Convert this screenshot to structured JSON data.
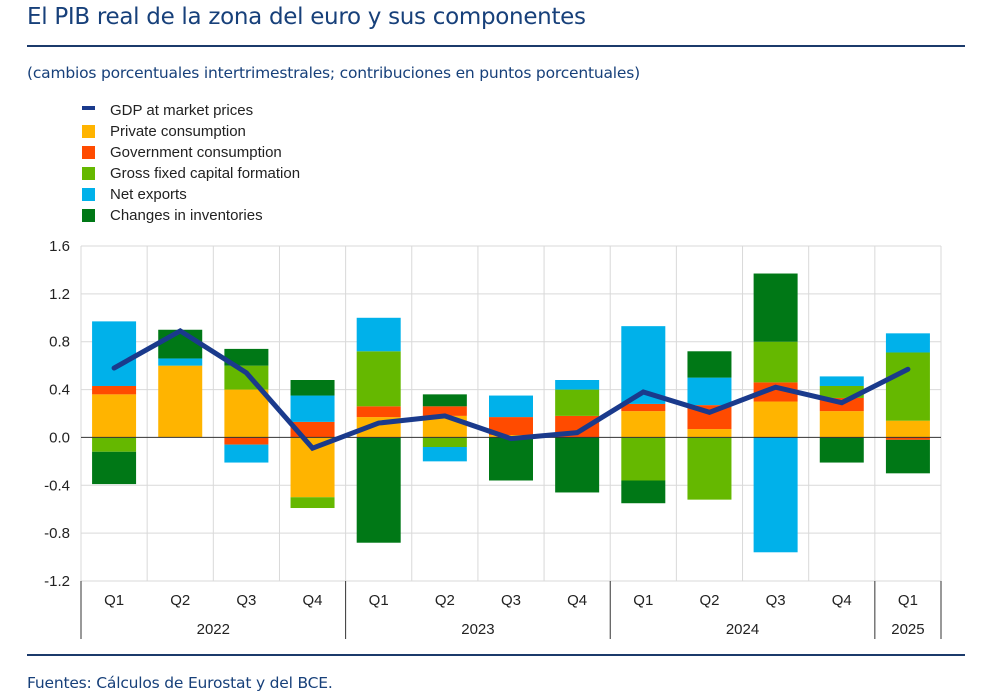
{
  "header": {
    "title": "El PIB real de la zona del euro y sus componentes",
    "subtitle": "(cambios porcentuales intertrimestrales; contribuciones en puntos porcentuales)"
  },
  "footer": {
    "source": "Fuentes: Cálculos de Eurostat y del BCE."
  },
  "colors": {
    "gdp": "#1a3a8c",
    "private": "#ffb400",
    "government": "#ff4b00",
    "gfcf": "#65b800",
    "net_exports": "#00b1ea",
    "inventories": "#007816",
    "grid": "#d9d9d9",
    "axis": "#333333",
    "header_rule": "#1b3a6b"
  },
  "chart_data": {
    "type": "bar",
    "stacked": true,
    "title": "El PIB real de la zona del euro y sus componentes",
    "subtitle": "(cambios porcentuales intertrimestrales; contribuciones en puntos porcentuales)",
    "xlabel": "",
    "ylabel": "",
    "ylim": [
      -1.2,
      1.6
    ],
    "yticks": [
      1.6,
      1.2,
      0.8,
      0.4,
      0.0,
      -0.4,
      -0.8,
      -1.2
    ],
    "ytick_labels": [
      "1.6",
      "1.2",
      "0.8",
      "0.4",
      "0.0",
      "-0.4",
      "-0.8",
      "-1.2"
    ],
    "grid": true,
    "legend_position": "top-left",
    "categories": [
      "Q1",
      "Q2",
      "Q3",
      "Q4",
      "Q1",
      "Q2",
      "Q3",
      "Q4",
      "Q1",
      "Q2",
      "Q3",
      "Q4",
      "Q1"
    ],
    "year_groups": [
      {
        "label": "2022",
        "count": 4
      },
      {
        "label": "2023",
        "count": 4
      },
      {
        "label": "2024",
        "count": 4
      },
      {
        "label": "2025",
        "count": 1
      }
    ],
    "series": [
      {
        "key": "private",
        "name": "Private consumption",
        "kind": "bar",
        "values": [
          0.36,
          0.6,
          0.4,
          -0.5,
          0.17,
          0.18,
          0.02,
          0.0,
          0.22,
          0.07,
          0.3,
          0.22,
          0.14
        ]
      },
      {
        "key": "government",
        "name": "Government consumption",
        "kind": "bar",
        "values": [
          0.07,
          0.0,
          -0.06,
          0.13,
          0.09,
          0.08,
          0.15,
          0.18,
          0.06,
          0.2,
          0.16,
          0.11,
          -0.02
        ]
      },
      {
        "key": "gfcf",
        "name": "Gross fixed capital formation",
        "kind": "bar",
        "values": [
          -0.12,
          0.0,
          0.2,
          -0.09,
          0.46,
          -0.08,
          0.0,
          0.22,
          -0.36,
          -0.52,
          0.34,
          0.1,
          0.57
        ]
      },
      {
        "key": "net_exports",
        "name": "Net exports",
        "kind": "bar",
        "values": [
          0.54,
          0.06,
          -0.15,
          0.22,
          0.28,
          -0.12,
          0.18,
          0.08,
          0.65,
          0.23,
          -0.96,
          0.08,
          0.16
        ]
      },
      {
        "key": "inventories",
        "name": "Changes in inventories",
        "kind": "bar",
        "values": [
          -0.27,
          0.24,
          0.14,
          0.13,
          -0.88,
          0.1,
          -0.36,
          -0.46,
          -0.19,
          0.22,
          0.57,
          -0.21,
          -0.28
        ]
      },
      {
        "key": "gdp",
        "name": "GDP at market prices",
        "kind": "line",
        "values": [
          0.58,
          0.89,
          0.54,
          -0.09,
          0.12,
          0.18,
          -0.01,
          0.04,
          0.38,
          0.21,
          0.42,
          0.29,
          0.57
        ]
      }
    ],
    "legend": [
      {
        "key": "gdp",
        "label": "GDP at market prices",
        "kind": "line"
      },
      {
        "key": "private",
        "label": "Private consumption",
        "kind": "bar"
      },
      {
        "key": "government",
        "label": "Government consumption",
        "kind": "bar"
      },
      {
        "key": "gfcf",
        "label": "Gross fixed capital formation",
        "kind": "bar"
      },
      {
        "key": "net_exports",
        "label": "Net exports",
        "kind": "bar"
      },
      {
        "key": "inventories",
        "label": "Changes in inventories",
        "kind": "bar"
      }
    ]
  }
}
